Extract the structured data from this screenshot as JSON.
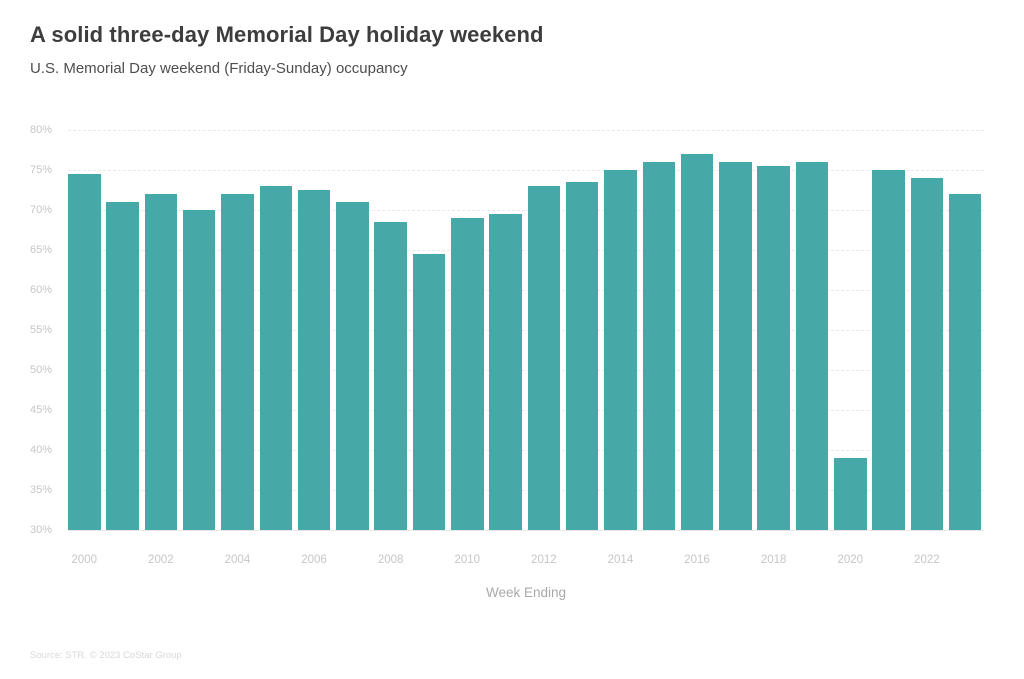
{
  "header": {
    "title": "A solid three-day Memorial Day holiday weekend",
    "subtitle": "U.S. Memorial Day weekend (Friday-Sunday) occupancy"
  },
  "chart_data": {
    "type": "bar",
    "title": "A solid three-day Memorial Day holiday weekend",
    "subtitle": "U.S. Memorial Day weekend (Friday-Sunday) occupancy",
    "xlabel": "Week Ending",
    "ylabel": "",
    "unit": "%",
    "categories": [
      "2000",
      "2001",
      "2002",
      "2003",
      "2004",
      "2005",
      "2006",
      "2007",
      "2008",
      "2009",
      "2010",
      "2011",
      "2012",
      "2013",
      "2014",
      "2015",
      "2016",
      "2017",
      "2018",
      "2019",
      "2020",
      "2021",
      "2022",
      "2023"
    ],
    "values": [
      74.5,
      71,
      72,
      70,
      72,
      73,
      72.5,
      71,
      68.5,
      64.5,
      69,
      69.5,
      73,
      73.5,
      75,
      76,
      77,
      76,
      75.5,
      76,
      39,
      75,
      74,
      72
    ],
    "ylim": [
      30,
      80
    ],
    "y_ticks": [
      80,
      75,
      70,
      65,
      60,
      55,
      50,
      45,
      40,
      35,
      30
    ],
    "x_tick_labels": [
      "2000",
      "2002",
      "2004",
      "2006",
      "2008",
      "2010",
      "2012",
      "2014",
      "2016",
      "2018",
      "2020",
      "2022"
    ],
    "bar_color": "#47A8A8",
    "grid": "faint horizontal dashed",
    "legend_position": "none"
  },
  "footer": {
    "source": "Source: STR. © 2023 CoStar Group"
  }
}
